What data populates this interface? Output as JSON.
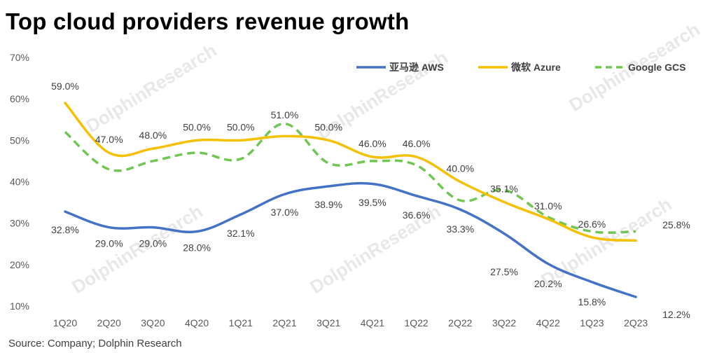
{
  "title": "Top cloud providers revenue growth",
  "source": "Source: Company; Dolphin Research",
  "watermark": "DolphinResearch",
  "colors": {
    "aws": "#4472C4",
    "azure": "#F5C000",
    "gcs": "#70C653"
  },
  "chart_data": {
    "type": "line",
    "title": "Top cloud providers revenue growth",
    "xlabel": "",
    "ylabel": "",
    "ylim": [
      10,
      70
    ],
    "yticks": [
      10,
      20,
      30,
      40,
      50,
      60,
      70
    ],
    "ytick_labels": [
      "10%",
      "20%",
      "30%",
      "40%",
      "50%",
      "60%",
      "70%"
    ],
    "grid": false,
    "legend_position": "top-right",
    "categories": [
      "1Q20",
      "2Q20",
      "3Q20",
      "4Q20",
      "1Q21",
      "2Q21",
      "3Q21",
      "4Q21",
      "1Q22",
      "2Q22",
      "3Q22",
      "4Q22",
      "1Q23",
      "2Q23"
    ],
    "series": [
      {
        "name": "亚马逊 AWS",
        "key": "aws",
        "style": "solid",
        "values": [
          32.8,
          29.0,
          29.0,
          28.0,
          32.1,
          37.0,
          38.9,
          39.5,
          36.6,
          33.3,
          27.5,
          20.2,
          15.8,
          12.2
        ],
        "labels": [
          "32.8%",
          "29.0%",
          "29.0%",
          "28.0%",
          "32.1%",
          "37.0%",
          "38.9%",
          "39.5%",
          "36.6%",
          "33.3%",
          "27.5%",
          "20.2%",
          "15.8%",
          "12.2%"
        ]
      },
      {
        "name": "微软 Azure",
        "key": "azure",
        "style": "solid",
        "values": [
          59.0,
          47.0,
          48.0,
          50.0,
          50.0,
          51.0,
          50.0,
          46.0,
          46.0,
          40.0,
          35.1,
          31.0,
          26.6,
          25.8
        ],
        "labels": [
          "59.0%",
          "47.0%",
          "48.0%",
          "50.0%",
          "50.0%",
          "51.0%",
          "50.0%",
          "46.0%",
          "46.0%",
          "40.0%",
          "35.1%",
          "31.0%",
          "26.6%",
          "25.8%"
        ]
      },
      {
        "name": "Google GCS",
        "key": "gcs",
        "style": "dashed",
        "values": [
          52.0,
          43.0,
          45.0,
          47.0,
          45.5,
          54.0,
          44.5,
          45.0,
          44.0,
          35.5,
          38.0,
          31.5,
          28.0,
          28.0
        ]
      }
    ]
  }
}
